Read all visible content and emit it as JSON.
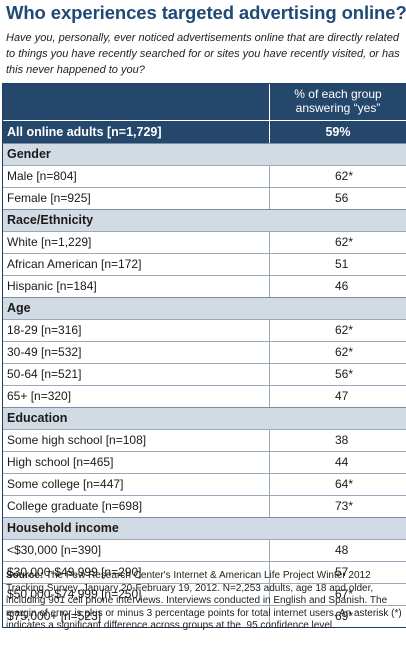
{
  "title": "Who experiences targeted advertising online?",
  "question": "Have you, personally, ever noticed advertisements online that are directly related to things you have recently searched for or sites you have recently visited, or has this never happened to you?",
  "table": {
    "column_header_line1": "% of each group",
    "column_header_line2": "answering “yes”",
    "all_row": {
      "label": "All online adults [n=1,729]",
      "value": "59%"
    },
    "sections": [
      {
        "name": "Gender",
        "rows": [
          {
            "label": "Male [n=804]",
            "value": "62*"
          },
          {
            "label": "Female [n=925]",
            "value": "56"
          }
        ]
      },
      {
        "name": "Race/Ethnicity",
        "rows": [
          {
            "label": "White [n=1,229]",
            "value": "62*"
          },
          {
            "label": "African American [n=172]",
            "value": "51"
          },
          {
            "label": "Hispanic [n=184]",
            "value": "46"
          }
        ]
      },
      {
        "name": "Age",
        "rows": [
          {
            "label": "18-29 [n=316]",
            "value": "62*"
          },
          {
            "label": "30-49 [n=532]",
            "value": "62*"
          },
          {
            "label": "50-64 [n=521]",
            "value": "56*"
          },
          {
            "label": "65+ [n=320]",
            "value": "47"
          }
        ]
      },
      {
        "name": "Education",
        "rows": [
          {
            "label": "Some high school [n=108]",
            "value": "38"
          },
          {
            "label": "High school [n=465]",
            "value": "44"
          },
          {
            "label": "Some college [n=447]",
            "value": "64*"
          },
          {
            "label": "College graduate [n=698]",
            "value": "73*"
          }
        ]
      },
      {
        "name": "Household income",
        "rows": [
          {
            "label": "<$30,000 [n=390]",
            "value": "48"
          },
          {
            "label": "$30,000-$49,999 [n=290]",
            "value": "57"
          },
          {
            "label": "$50,000-$74,999 [n=250]",
            "value": "67*"
          },
          {
            "label": "$75,000+ [n=523]",
            "value": "69*"
          }
        ]
      }
    ]
  },
  "source": {
    "label": "Source:",
    "text": "The Pew Research Center's Internet & American Life Project Winter 2012 Tracking Survey, January 20-February 19, 2012. N=2,253 adults, age 18 and older, including 901 cell phone interviews. Interviews conducted in English and Spanish. The margin of error is plus or minus 3 percentage points for total internet users. An asterisk (*) indicates a significant difference across groups at the .95 confidence level."
  }
}
